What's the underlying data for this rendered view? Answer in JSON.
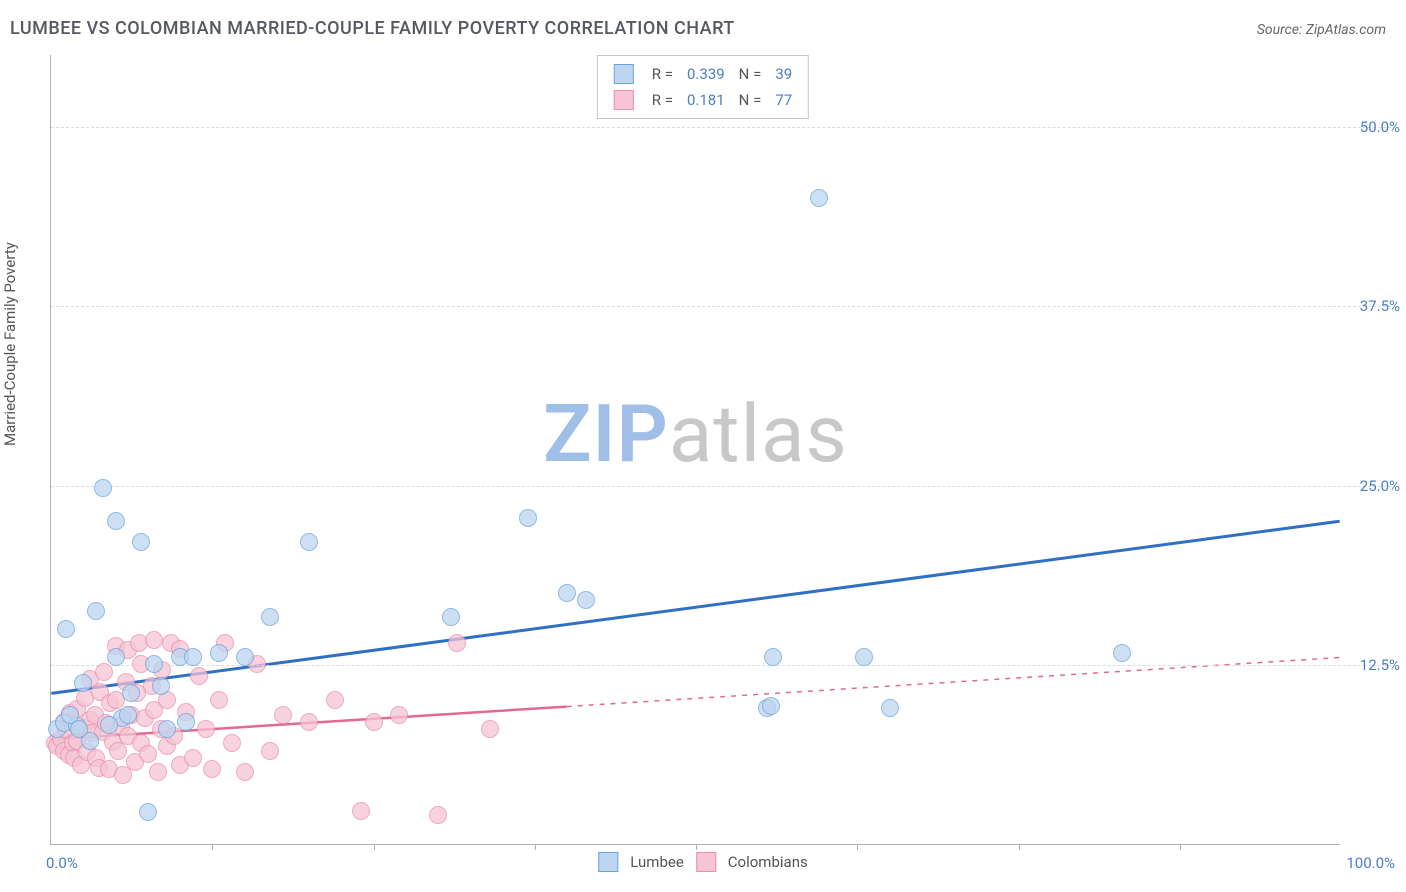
{
  "title": "LUMBEE VS COLOMBIAN MARRIED-COUPLE FAMILY POVERTY CORRELATION CHART",
  "source_label": "Source: ZipAtlas.com",
  "y_axis_title": "Married-Couple Family Poverty",
  "watermark": {
    "part1": "ZIP",
    "part2": "atlas",
    "color1": "#9fbfe6",
    "color2": "#c8c8c8"
  },
  "chart": {
    "type": "scatter",
    "xlim": [
      0,
      100
    ],
    "ylim": [
      0,
      55
    ],
    "x_origin_label": "0.0%",
    "x_max_label": "100.0%",
    "x_ticks_at": [
      12.5,
      25,
      37.5,
      50,
      62.5,
      75,
      87.5
    ],
    "y_gridlines": [
      {
        "value": 12.5,
        "label": "12.5%"
      },
      {
        "value": 25.0,
        "label": "25.0%"
      },
      {
        "value": 37.5,
        "label": "37.5%"
      },
      {
        "value": 50.0,
        "label": "50.0%"
      }
    ],
    "background_color": "#ffffff",
    "grid_color": "#dcdcdc",
    "axis_color": "#b0b0b0",
    "tick_label_color": "#4a7fc5",
    "legend_top": {
      "border_color": "#c5c5c5",
      "rows": [
        {
          "swatch_fill": "#bcd5f0",
          "swatch_border": "#6fa3dd",
          "r_label": "R =",
          "r_value": "0.339",
          "n_label": "N =",
          "n_value": "39"
        },
        {
          "swatch_fill": "#f6c4d3",
          "swatch_border": "#e98fae",
          "r_label": "R =",
          "r_value": "0.181",
          "n_label": "N =",
          "n_value": "77"
        }
      ]
    },
    "legend_bottom": [
      {
        "swatch_fill": "#bcd5f0",
        "swatch_border": "#6fa3dd",
        "label": "Lumbee"
      },
      {
        "swatch_fill": "#f6c4d3",
        "swatch_border": "#e98fae",
        "label": "Colombians"
      }
    ],
    "series": [
      {
        "name": "Lumbee",
        "marker_fill": "#bcd5f0",
        "marker_border": "#6fa3dd",
        "marker_opacity": 0.75,
        "marker_radius": 9,
        "trend": {
          "color": "#2f6fc4",
          "width": 3,
          "solid_from_x": 0,
          "solid_to_x": 100,
          "y_at_x0": 10.5,
          "y_at_x100": 22.5
        },
        "points": [
          [
            0.5,
            8.0
          ],
          [
            1.0,
            8.4
          ],
          [
            1.2,
            15.0
          ],
          [
            2.0,
            8.2
          ],
          [
            2.5,
            11.2
          ],
          [
            3.0,
            7.2
          ],
          [
            3.5,
            16.2
          ],
          [
            4.0,
            24.8
          ],
          [
            5.0,
            22.5
          ],
          [
            5.0,
            13.0
          ],
          [
            5.5,
            8.8
          ],
          [
            6.2,
            10.5
          ],
          [
            7.0,
            21.0
          ],
          [
            7.5,
            2.2
          ],
          [
            8.0,
            12.5
          ],
          [
            8.5,
            11.0
          ],
          [
            10.0,
            13.0
          ],
          [
            10.5,
            8.5
          ],
          [
            11.0,
            13.0
          ],
          [
            13.0,
            13.3
          ],
          [
            15.0,
            13.0
          ],
          [
            17.0,
            15.8
          ],
          [
            20.0,
            21.0
          ],
          [
            31.0,
            15.8
          ],
          [
            37.0,
            22.7
          ],
          [
            40.0,
            17.5
          ],
          [
            41.5,
            17.0
          ],
          [
            55.5,
            9.5
          ],
          [
            55.8,
            9.6
          ],
          [
            56.0,
            13.0
          ],
          [
            59.5,
            45.0
          ],
          [
            63.0,
            13.0
          ],
          [
            65.0,
            9.5
          ],
          [
            83.0,
            13.3
          ],
          [
            1.5,
            9.0
          ],
          [
            2.2,
            8.0
          ],
          [
            4.5,
            8.3
          ],
          [
            6.0,
            9.0
          ],
          [
            9.0,
            8.0
          ]
        ]
      },
      {
        "name": "Colombians",
        "marker_fill": "#f6c4d3",
        "marker_border": "#e98fae",
        "marker_opacity": 0.75,
        "marker_radius": 9,
        "trend": {
          "color": "#e26a8f",
          "width": 2.5,
          "solid_from_x": 0,
          "solid_to_x": 40,
          "dashed_to_x": 100,
          "y_at_x0": 7.3,
          "y_at_x100": 13.0
        },
        "points": [
          [
            0.3,
            7.0
          ],
          [
            0.5,
            6.8
          ],
          [
            0.8,
            7.3
          ],
          [
            1.0,
            6.5
          ],
          [
            1.0,
            8.5
          ],
          [
            1.2,
            8.0
          ],
          [
            1.4,
            6.2
          ],
          [
            1.5,
            9.1
          ],
          [
            1.7,
            7.0
          ],
          [
            1.8,
            6.0
          ],
          [
            2.0,
            7.2
          ],
          [
            2.0,
            9.4
          ],
          [
            2.3,
            5.5
          ],
          [
            2.5,
            8.1
          ],
          [
            2.6,
            10.2
          ],
          [
            2.8,
            6.4
          ],
          [
            3.0,
            8.6
          ],
          [
            3.0,
            11.5
          ],
          [
            3.2,
            7.7
          ],
          [
            3.4,
            9.0
          ],
          [
            3.5,
            6.0
          ],
          [
            3.7,
            5.3
          ],
          [
            3.8,
            10.6
          ],
          [
            4.0,
            7.8
          ],
          [
            4.1,
            12.0
          ],
          [
            4.3,
            8.4
          ],
          [
            4.5,
            5.2
          ],
          [
            4.6,
            9.8
          ],
          [
            4.8,
            7.1
          ],
          [
            5.0,
            10.0
          ],
          [
            5.0,
            13.8
          ],
          [
            5.2,
            6.5
          ],
          [
            5.4,
            8.2
          ],
          [
            5.6,
            4.8
          ],
          [
            5.8,
            11.3
          ],
          [
            6.0,
            7.5
          ],
          [
            6.0,
            13.5
          ],
          [
            6.2,
            9.0
          ],
          [
            6.5,
            5.7
          ],
          [
            6.7,
            10.5
          ],
          [
            6.8,
            14.0
          ],
          [
            7.0,
            7.0
          ],
          [
            7.0,
            12.5
          ],
          [
            7.3,
            8.8
          ],
          [
            7.5,
            6.3
          ],
          [
            7.8,
            11.0
          ],
          [
            8.0,
            9.3
          ],
          [
            8.0,
            14.2
          ],
          [
            8.3,
            5.0
          ],
          [
            8.5,
            8.0
          ],
          [
            8.6,
            12.1
          ],
          [
            9.0,
            6.8
          ],
          [
            9.0,
            10.0
          ],
          [
            9.3,
            14.0
          ],
          [
            9.5,
            7.5
          ],
          [
            10.0,
            5.5
          ],
          [
            10.0,
            13.6
          ],
          [
            10.5,
            9.2
          ],
          [
            11.0,
            6.0
          ],
          [
            11.5,
            11.7
          ],
          [
            12.0,
            8.0
          ],
          [
            12.5,
            5.2
          ],
          [
            13.0,
            10.0
          ],
          [
            13.5,
            14.0
          ],
          [
            14.0,
            7.0
          ],
          [
            15.0,
            5.0
          ],
          [
            16.0,
            12.5
          ],
          [
            17.0,
            6.5
          ],
          [
            18.0,
            9.0
          ],
          [
            20.0,
            8.5
          ],
          [
            22.0,
            10.0
          ],
          [
            24.0,
            2.3
          ],
          [
            25.0,
            8.5
          ],
          [
            27.0,
            9.0
          ],
          [
            30.0,
            2.0
          ],
          [
            31.5,
            14.0
          ],
          [
            34.0,
            8.0
          ]
        ]
      }
    ]
  }
}
